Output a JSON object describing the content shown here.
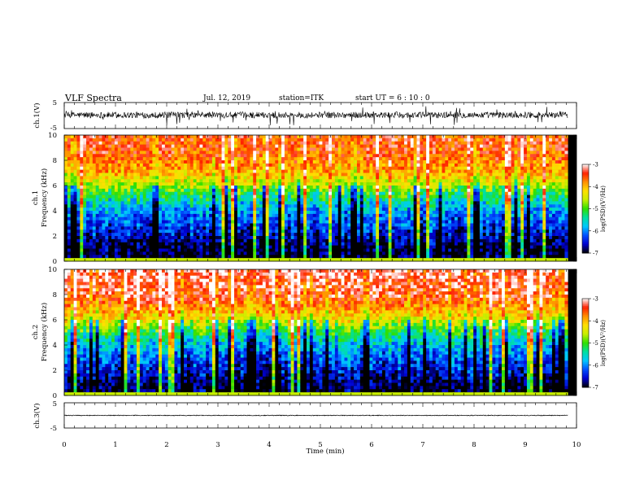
{
  "header": {
    "title": "VLF Spectra",
    "date": "Jul. 12, 2019",
    "station": "station=ITK",
    "start_time": "start UT =  6 : 10 : 0"
  },
  "colorbar": {
    "label": "log(PSD)(V²/Hz)",
    "ticks": [
      -3,
      -4,
      -5,
      -6,
      -7
    ],
    "range": [
      -7,
      -3
    ],
    "colors": [
      "#000000",
      "#0000d0",
      "#0050ff",
      "#00c8ff",
      "#00e0a0",
      "#30e000",
      "#c8ee00",
      "#ffe000",
      "#ff9000",
      "#ff2000",
      "#ffffff"
    ]
  },
  "chart_data": [
    {
      "type": "line",
      "panel": "ch1-waveform",
      "ylabel": "ch.1(V)",
      "ylim": [
        -5,
        5
      ],
      "yticks": [
        5,
        -5
      ],
      "xlim": [
        0,
        10
      ],
      "x_end": 9.83,
      "series": [
        {
          "baseline": 0.2,
          "noise_amplitude": 1.2,
          "spike_amplitude": 4.0,
          "color": "#000000"
        }
      ]
    },
    {
      "type": "heatmap",
      "panel": "ch1-spectrogram",
      "ylabel": "ch.1\nFrequency (kHz)",
      "xlim": [
        0,
        10
      ],
      "ylim": [
        0,
        10
      ],
      "yticks": [
        0,
        2,
        4,
        6,
        8,
        10
      ],
      "x_end": 9.83,
      "profile_khz": [
        0,
        1,
        2,
        3,
        4,
        5,
        6,
        7,
        8,
        9,
        10
      ],
      "profile_logpsd": [
        -7,
        -7,
        -6.6,
        -6.3,
        -6.0,
        -5.4,
        -4.7,
        -4.0,
        -3.7,
        -3.5,
        -3.5
      ]
    },
    {
      "type": "heatmap",
      "panel": "ch2-spectrogram",
      "ylabel": "ch.2\nFrequency (kHz)",
      "xlim": [
        0,
        10
      ],
      "ylim": [
        0,
        10
      ],
      "yticks": [
        0,
        2,
        4,
        6,
        8,
        10
      ],
      "x_end": 9.83,
      "profile_khz": [
        0,
        1,
        2,
        3,
        4,
        5,
        6,
        7,
        8,
        9,
        10
      ],
      "profile_logpsd": [
        -7,
        -6.9,
        -6.5,
        -6.2,
        -5.8,
        -5.2,
        -4.4,
        -3.8,
        -3.4,
        -3.3,
        -3.2
      ]
    },
    {
      "type": "line",
      "panel": "ch3-waveform",
      "ylabel": "ch.3(V)",
      "ylim": [
        -5,
        5
      ],
      "yticks": [
        5,
        -5
      ],
      "xlim": [
        0,
        10
      ],
      "x_end": 9.83,
      "series": [
        {
          "baseline": 0.0,
          "noise_amplitude": 0.15,
          "spike_amplitude": 0,
          "color": "#000000"
        }
      ]
    }
  ],
  "xaxis": {
    "label": "Time (min)",
    "ticks": [
      0,
      1,
      2,
      3,
      4,
      5,
      6,
      7,
      8,
      9,
      10
    ],
    "minor_step": 0.2
  }
}
